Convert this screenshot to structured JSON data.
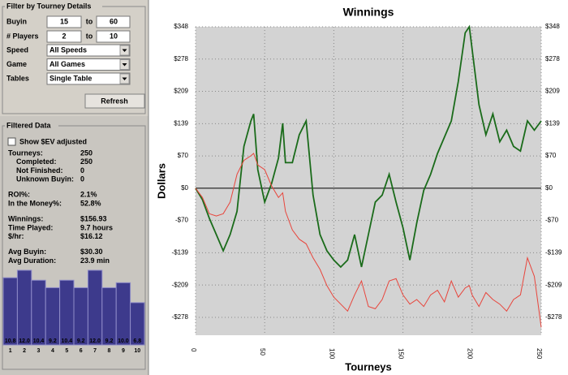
{
  "filter": {
    "title": "Filter by Tourney Details",
    "ranges": [
      {
        "label": "Buyin",
        "from": 15,
        "sep": "to",
        "to": 60
      },
      {
        "label": "# Players",
        "from": 2,
        "sep": "to",
        "to": 10
      }
    ],
    "selects": [
      {
        "label": "Speed",
        "value": "All Speeds"
      },
      {
        "label": "Game",
        "value": "All Games"
      },
      {
        "label": "Tables",
        "value": "Single Table"
      }
    ],
    "button": "Refresh"
  },
  "filtered_data": {
    "title": "Filtered Data",
    "checkbox": "Show $EV adjusted",
    "groups": [
      [
        {
          "label": "Tourneys:",
          "value": 250
        },
        {
          "label": "Completed:",
          "value": 250
        },
        {
          "label": "Not Finished:",
          "value": 0
        },
        {
          "label": "Unknown Buyin:",
          "value": 0
        }
      ],
      [
        {
          "label": "ROI%:",
          "value": "2.1%"
        },
        {
          "label": "In the Money%:",
          "value": "52.8%"
        }
      ],
      [
        {
          "label": "Winnings:",
          "value": "$156.93"
        },
        {
          "label": "Time Played:",
          "value": "9.7 hours"
        },
        {
          "label": "$/hr:",
          "value": "$16.12"
        }
      ],
      [
        {
          "label": "Avg Buyin:",
          "value": "$30.30"
        },
        {
          "label": "Avg Duration:",
          "value": "23.9 min"
        }
      ]
    ]
  },
  "chart_data": [
    {
      "type": "line",
      "title": "Winnings",
      "x_label": "Tourneys",
      "y_label": "Dollars",
      "x": [
        0,
        5,
        10,
        15,
        20,
        25,
        30,
        35,
        40,
        42,
        45,
        50,
        55,
        60,
        63,
        65,
        70,
        75,
        80,
        85,
        90,
        95,
        100,
        105,
        110,
        115,
        120,
        125,
        130,
        135,
        140,
        145,
        150,
        155,
        160,
        165,
        170,
        175,
        180,
        185,
        190,
        195,
        198,
        200,
        205,
        210,
        215,
        220,
        225,
        230,
        235,
        240,
        245,
        250
      ],
      "series": [
        {
          "color": "#1a6b1a",
          "values": [
            0,
            -25,
            -65,
            -100,
            -135,
            -100,
            -50,
            90,
            145,
            160,
            40,
            -30,
            10,
            65,
            140,
            55,
            55,
            115,
            145,
            -15,
            -100,
            -135,
            -155,
            -170,
            -155,
            -100,
            -170,
            -100,
            -30,
            -15,
            30,
            -30,
            -85,
            -155,
            -75,
            -5,
            30,
            75,
            110,
            145,
            230,
            335,
            348,
            300,
            180,
            115,
            160,
            100,
            125,
            90,
            80,
            145,
            125,
            145
          ]
        },
        {
          "color": "#e8453c",
          "values": [
            0,
            -20,
            -55,
            -60,
            -55,
            -30,
            30,
            60,
            70,
            75,
            50,
            40,
            5,
            -20,
            -10,
            -50,
            -90,
            -110,
            -120,
            -150,
            -175,
            -210,
            -235,
            -250,
            -265,
            -230,
            -200,
            -255,
            -260,
            -240,
            -200,
            -195,
            -230,
            -250,
            -240,
            -255,
            -230,
            -220,
            -245,
            -200,
            -235,
            -215,
            -210,
            -230,
            -255,
            -225,
            -240,
            -250,
            -265,
            -240,
            -230,
            -150,
            -190,
            -300
          ]
        }
      ],
      "xlim": [
        0,
        250
      ],
      "xticks": [
        0,
        50,
        100,
        150,
        200,
        250
      ],
      "ylim": [
        -317,
        348
      ],
      "yticks": [
        {
          "value": 348,
          "label": "$348"
        },
        {
          "value": 278.4,
          "label": "$278"
        },
        {
          "value": 208.8,
          "label": "$209"
        },
        {
          "value": 139.2,
          "label": "$139"
        },
        {
          "value": 69.6,
          "label": "$70"
        },
        {
          "value": 0,
          "label": "$0"
        },
        {
          "value": -69.6,
          "label": "-$70"
        },
        {
          "value": -139.2,
          "label": "-$139"
        },
        {
          "value": -208.8,
          "label": "-$209"
        },
        {
          "value": -278.4,
          "label": "-$278"
        }
      ],
      "grid": true
    },
    {
      "type": "bar",
      "categories": [
        "1",
        "2",
        "3",
        "4",
        "5",
        "6",
        "7",
        "8",
        "9",
        "10"
      ],
      "values": [
        10.8,
        12.0,
        10.4,
        9.2,
        10.4,
        9.2,
        12.0,
        9.2,
        10.0,
        6.8
      ],
      "value_labels": [
        "10.8",
        "12.0",
        "10.4",
        "9.2",
        "10.4",
        "9.2",
        "12.0",
        "9.2",
        "10.0",
        "6.8"
      ],
      "color": "#3d3a8c"
    }
  ]
}
